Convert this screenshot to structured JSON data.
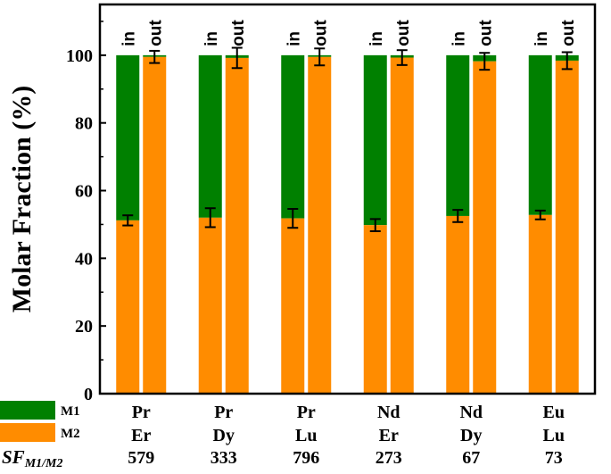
{
  "chart_data": {
    "type": "bar",
    "stacked": true,
    "ylabel": "Molar Fraction (%)",
    "ylim": [
      0,
      115
    ],
    "yticks": [
      0,
      20,
      40,
      60,
      80,
      100
    ],
    "bar_labels": [
      "in",
      "out"
    ],
    "series": [
      {
        "name": "M1",
        "color": "#008000"
      },
      {
        "name": "M2",
        "color": "#ff8c00"
      }
    ],
    "sf_label_main": "SF",
    "sf_label_sub": "M1/M2",
    "groups": [
      {
        "m1": "Pr",
        "m2": "Er",
        "sf": "579",
        "in_m2": 51.2,
        "in_err": 1.5,
        "out_m2": 99.5,
        "out_err": 1.8
      },
      {
        "m1": "Pr",
        "m2": "Dy",
        "sf": "333",
        "in_m2": 52.0,
        "in_err": 2.8,
        "out_m2": 99.2,
        "out_err": 3.0
      },
      {
        "m1": "Pr",
        "m2": "Lu",
        "sf": "796",
        "in_m2": 51.8,
        "in_err": 2.8,
        "out_m2": 99.5,
        "out_err": 2.5
      },
      {
        "m1": "Nd",
        "m2": "Er",
        "sf": "273",
        "in_m2": 49.8,
        "in_err": 1.8,
        "out_m2": 99.3,
        "out_err": 2.2
      },
      {
        "m1": "Nd",
        "m2": "Dy",
        "sf": "67",
        "in_m2": 52.5,
        "in_err": 1.8,
        "out_m2": 98.2,
        "out_err": 2.5
      },
      {
        "m1": "Eu",
        "m2": "Lu",
        "sf": "73",
        "in_m2": 52.8,
        "in_err": 1.3,
        "out_m2": 98.4,
        "out_err": 2.5
      }
    ]
  }
}
